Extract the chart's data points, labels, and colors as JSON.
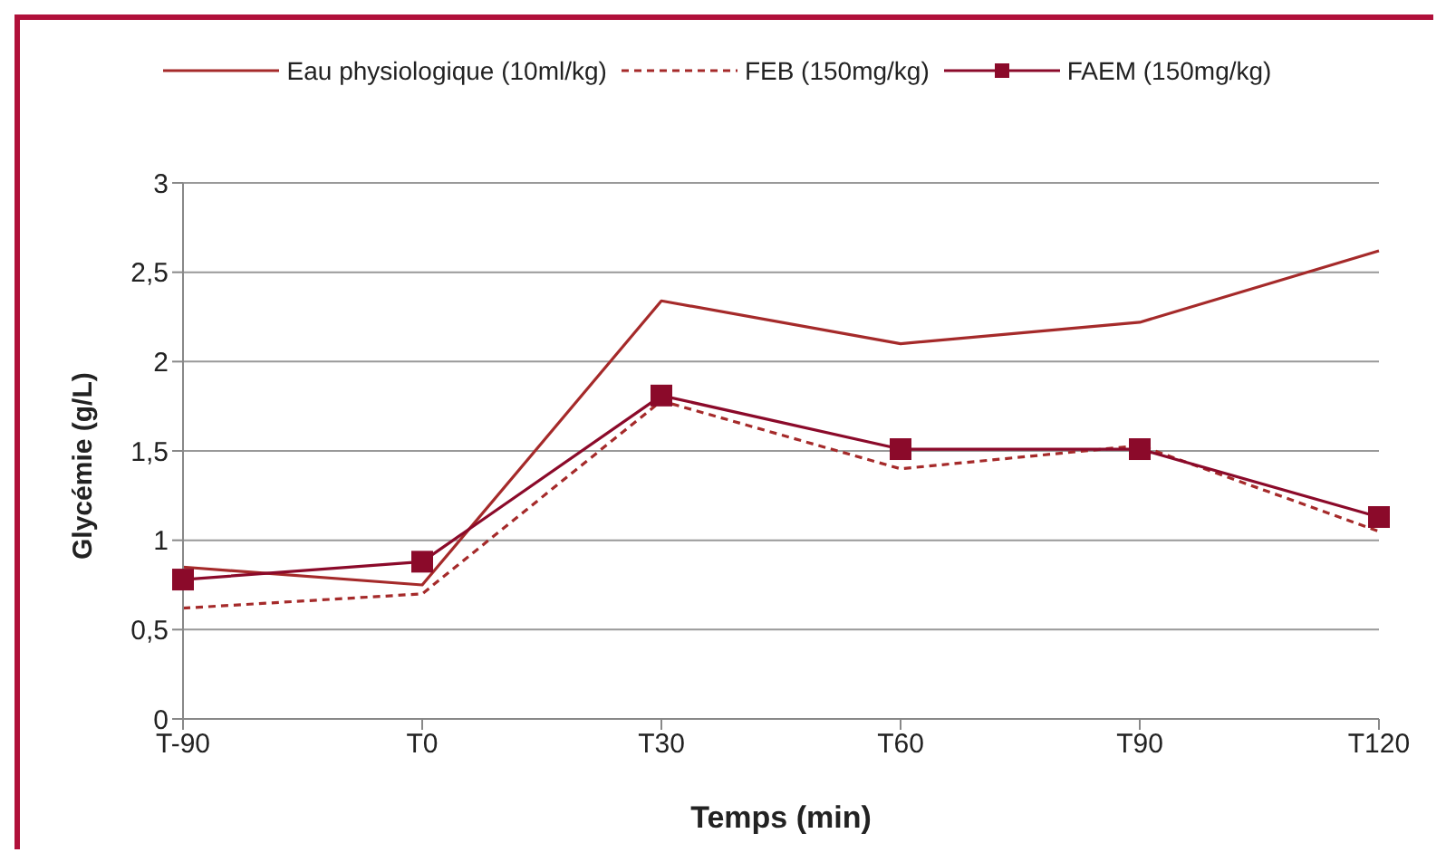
{
  "chart_data": {
    "type": "line",
    "xlabel": "Temps (min)",
    "ylabel": "Glycémie  (g/L)",
    "categories": [
      "T-90",
      "T0",
      "T30",
      "T60",
      "T90",
      "T120"
    ],
    "series": [
      {
        "name": "Eau physiologique (10ml/kg)",
        "color": "#a52a2a",
        "line_style": "solid",
        "marker": "none",
        "values": [
          0.85,
          0.75,
          2.34,
          2.1,
          2.22,
          2.62
        ]
      },
      {
        "name": "FEB (150mg/kg)",
        "color": "#a52a2a",
        "line_style": "dashed",
        "marker": "none",
        "values": [
          0.62,
          0.7,
          1.78,
          1.4,
          1.53,
          1.05
        ]
      },
      {
        "name": "FAEM (150mg/kg)",
        "color": "#8b0a2a",
        "line_style": "solid",
        "marker": "square",
        "values": [
          0.78,
          0.88,
          1.81,
          1.51,
          1.51,
          1.13
        ]
      }
    ],
    "ylim": [
      0,
      3
    ],
    "yticks": [
      {
        "value": 0,
        "label": "0"
      },
      {
        "value": 0.5,
        "label": "0,5"
      },
      {
        "value": 1,
        "label": "1"
      },
      {
        "value": 1.5,
        "label": "1,5"
      },
      {
        "value": 2,
        "label": "2"
      },
      {
        "value": 2.5,
        "label": "2,5"
      },
      {
        "value": 3,
        "label": "3"
      }
    ],
    "grid": "y",
    "legend": "top"
  }
}
